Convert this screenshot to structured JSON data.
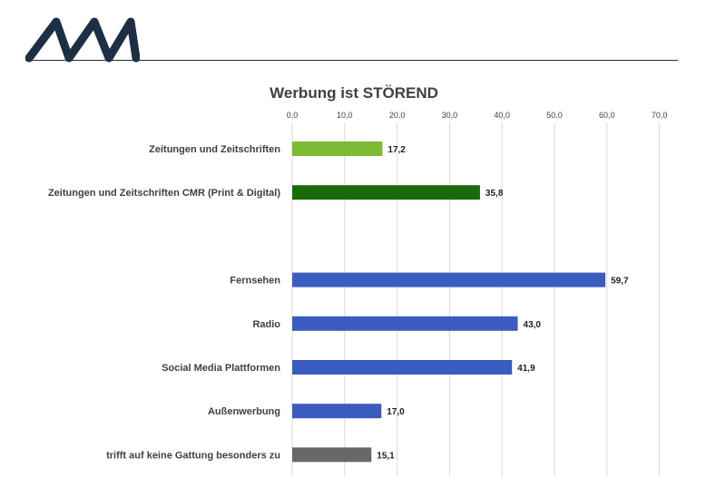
{
  "chart_data": {
    "type": "bar",
    "orientation": "horizontal",
    "title": "Werbung ist STÖREND",
    "xlim": [
      0,
      70
    ],
    "ticks": [
      "0,0",
      "10,0",
      "20,0",
      "30,0",
      "40,0",
      "50,0",
      "60,0",
      "70,0"
    ],
    "tick_values": [
      0,
      10,
      20,
      30,
      40,
      50,
      60,
      70
    ],
    "grid": true,
    "categories": [
      "Zeitungen und Zeitschriften",
      "Zeitungen und Zeitschriften CMR (Print & Digital)",
      "",
      "Fernsehen",
      "Radio",
      "Social Media Plattformen",
      "Außenwerbung",
      "trifft auf keine Gattung besonders zu"
    ],
    "values": [
      17.2,
      35.8,
      null,
      59.7,
      43.0,
      41.9,
      17.0,
      15.1
    ],
    "value_labels": [
      "17,2",
      "35,8",
      "",
      "59,7",
      "43,0",
      "41,9",
      "17,0",
      "15,1"
    ],
    "colors": [
      "#7dbb35",
      "#1a6b0c",
      "",
      "#3a5cc0",
      "#3a5cc0",
      "#3a5cc0",
      "#3a5cc0",
      "#686868"
    ]
  },
  "brand": {
    "logo_color": "#1c2f44",
    "rule_color": "#1c2f44"
  }
}
